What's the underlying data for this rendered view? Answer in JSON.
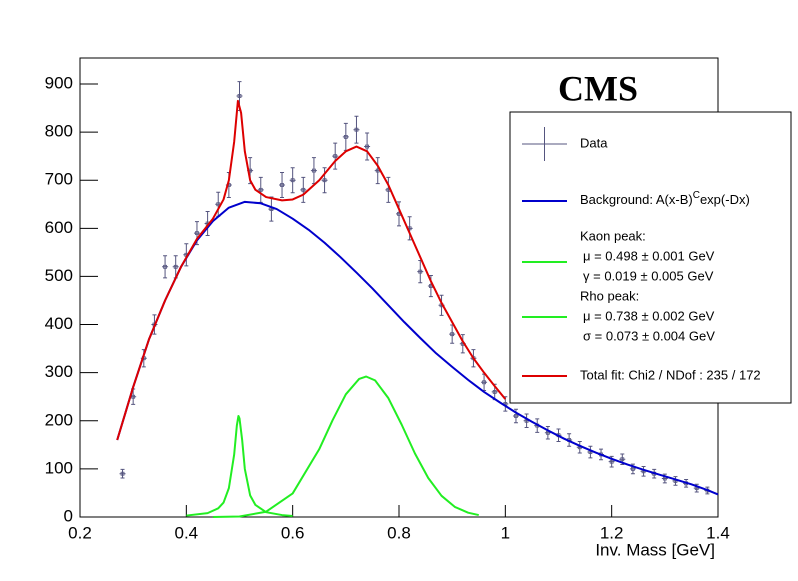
{
  "chart_data": {
    "type": "line",
    "annotation": "CMS",
    "x_label": "Inv. Mass [GeV]",
    "xlim": [
      0.2,
      1.4
    ],
    "ylim": [
      0,
      954
    ],
    "xticks": [
      0.2,
      0.4,
      0.6,
      0.8,
      1,
      1.2,
      1.4
    ],
    "yticks": [
      0,
      100,
      200,
      300,
      400,
      500,
      600,
      700,
      800,
      900
    ],
    "legend": "upper right",
    "series": [
      {
        "name": [
          "Data"
        ],
        "type": "errorbar",
        "color": "#55557f",
        "x": [
          0.28,
          0.3,
          0.32,
          0.34,
          0.36,
          0.38,
          0.4,
          0.42,
          0.44,
          0.46,
          0.48,
          0.5,
          0.52,
          0.54,
          0.56,
          0.58,
          0.6,
          0.62,
          0.64,
          0.66,
          0.68,
          0.7,
          0.72,
          0.74,
          0.76,
          0.78,
          0.8,
          0.82,
          0.84,
          0.86,
          0.88,
          0.9,
          0.92,
          0.94,
          0.96,
          0.98,
          1.0,
          1.02,
          1.04,
          1.06,
          1.08,
          1.1,
          1.12,
          1.14,
          1.16,
          1.18,
          1.2,
          1.22,
          1.24,
          1.26,
          1.28,
          1.3,
          1.32,
          1.34,
          1.36,
          1.38
        ],
        "values": [
          90,
          250,
          330,
          400,
          520,
          520,
          545,
          590,
          610,
          650,
          690,
          875,
          720,
          680,
          640,
          690,
          700,
          680,
          720,
          700,
          750,
          790,
          805,
          770,
          720,
          680,
          630,
          600,
          510,
          480,
          440,
          380,
          360,
          330,
          280,
          260,
          235,
          210,
          200,
          190,
          175,
          170,
          160,
          145,
          135,
          130,
          115,
          120,
          100,
          95,
          90,
          80,
          75,
          70,
          60,
          55
        ],
        "errors": [
          9,
          16,
          18,
          20,
          23,
          23,
          23,
          24,
          25,
          25,
          26,
          30,
          27,
          26,
          25,
          26,
          26,
          26,
          27,
          26,
          27,
          28,
          28,
          28,
          27,
          26,
          25,
          24,
          23,
          22,
          21,
          19,
          19,
          18,
          17,
          16,
          15,
          14,
          14,
          14,
          13,
          13,
          13,
          12,
          12,
          11,
          11,
          11,
          10,
          10,
          9,
          9,
          9,
          8,
          8,
          7
        ]
      },
      {
        "name": [
          "Background: A(x-B)",
          "C",
          "exp(-Dx)"
        ],
        "type": "line",
        "color": "#0000cc",
        "x": [
          0.27,
          0.3,
          0.33,
          0.36,
          0.39,
          0.42,
          0.45,
          0.48,
          0.51,
          0.54,
          0.57,
          0.6,
          0.63,
          0.66,
          0.69,
          0.72,
          0.75,
          0.78,
          0.81,
          0.84,
          0.87,
          0.9,
          0.93,
          0.96,
          0.99,
          1.02,
          1.05,
          1.08,
          1.11,
          1.14,
          1.17,
          1.2,
          1.23,
          1.26,
          1.29,
          1.32,
          1.35,
          1.38,
          1.4
        ],
        "values": [
          160,
          270,
          370,
          450,
          520,
          575,
          615,
          643,
          655,
          652,
          640,
          620,
          597,
          570,
          540,
          508,
          475,
          440,
          405,
          372,
          340,
          312,
          285,
          260,
          238,
          217,
          198,
          180,
          163,
          148,
          134,
          121,
          109,
          98,
          88,
          78,
          68,
          56,
          47
        ]
      },
      {
        "name": [
          "Kaon peak:",
          "μ = 0.498 ± 0.001 GeV",
          "γ = 0.019 ± 0.005 GeV"
        ],
        "type": "line",
        "color": "#22ee22",
        "x": [
          0.4,
          0.44,
          0.46,
          0.47,
          0.48,
          0.49,
          0.495,
          0.498,
          0.5,
          0.505,
          0.51,
          0.52,
          0.53,
          0.55,
          0.58,
          0.6
        ],
        "values": [
          3,
          8,
          18,
          30,
          60,
          130,
          190,
          210,
          205,
          160,
          100,
          45,
          25,
          10,
          4,
          2
        ]
      },
      {
        "name": [
          "Rho peak:",
          "μ = 0.738 ± 0.002 GeV",
          "σ = 0.073 ± 0.004 GeV"
        ],
        "type": "line",
        "color": "#22ee22",
        "x": [
          0.45,
          0.5,
          0.55,
          0.6,
          0.65,
          0.675,
          0.7,
          0.725,
          0.738,
          0.755,
          0.78,
          0.805,
          0.83,
          0.855,
          0.88,
          0.905,
          0.93,
          0.95
        ],
        "values": [
          0,
          1,
          11,
          49,
          141,
          201,
          255,
          287,
          292,
          284,
          247,
          192,
          132,
          81,
          44,
          21,
          9,
          4
        ]
      },
      {
        "name": [
          "Total fit: Chi2 / NDof : 235 / 172"
        ],
        "type": "line",
        "color": "#dd0000",
        "x": [
          0.27,
          0.3,
          0.33,
          0.36,
          0.39,
          0.42,
          0.45,
          0.47,
          0.48,
          0.49,
          0.497,
          0.503,
          0.51,
          0.52,
          0.53,
          0.55,
          0.58,
          0.6,
          0.62,
          0.65,
          0.68,
          0.7,
          0.72,
          0.74,
          0.76,
          0.78,
          0.8,
          0.82,
          0.84,
          0.86,
          0.88,
          0.9,
          0.92,
          0.94,
          0.96,
          0.98,
          1.0
        ],
        "values": [
          160,
          270,
          370,
          450,
          520,
          578,
          620,
          660,
          700,
          780,
          865,
          840,
          760,
          700,
          680,
          665,
          658,
          660,
          670,
          700,
          740,
          760,
          770,
          760,
          730,
          690,
          640,
          590,
          540,
          490,
          445,
          405,
          365,
          330,
          300,
          272,
          245
        ]
      }
    ]
  }
}
